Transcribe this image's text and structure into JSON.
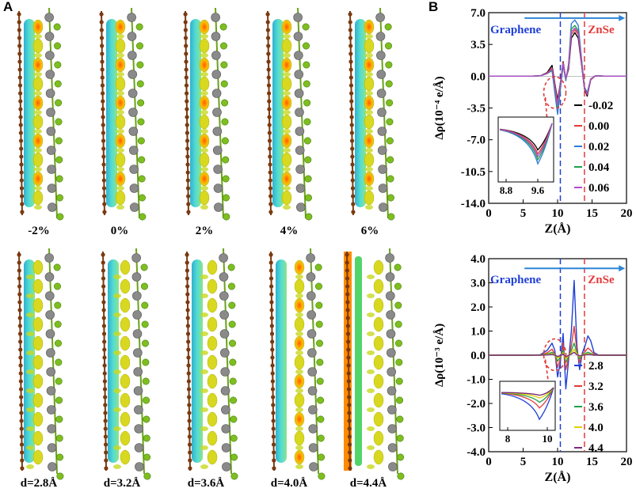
{
  "panel_a": {
    "letter": "A",
    "strain_labels": [
      "-2%",
      "0%",
      "2%",
      "4%",
      "6%"
    ],
    "distance_labels": [
      "d=2.8Å",
      "d=3.2Å",
      "d=3.6Å",
      "d=4.0Å",
      "d=4.4Å"
    ]
  },
  "panel_b": {
    "letter": "B"
  },
  "colors": {
    "carbon": "#7a3a10",
    "selenium": "#7dbf1f",
    "zinc": "#8a8a8a",
    "cyan": "#2ec4c4",
    "yellow": "#d8d820",
    "orange": "#ff9a00"
  },
  "chart_data": [
    {
      "type": "line",
      "title": "",
      "xlabel": "Z(Å)",
      "ylabel": "Δρ(10⁻⁴ e/Å)",
      "xlim": [
        0,
        20
      ],
      "ylim": [
        -14.0,
        7.0
      ],
      "xticks": [
        0,
        5,
        10,
        15,
        20
      ],
      "yticks": [
        -14.0,
        -10.5,
        -7.0,
        -3.5,
        0.0,
        3.5,
        7.0
      ],
      "ytick_labels": [
        "-14.0",
        "-10.5",
        "-7.0",
        "-3.5",
        "0.0",
        "3.5",
        "7.0"
      ],
      "annotations": {
        "left": "Graphene",
        "right": "ZnSe"
      },
      "interface_lines_x": [
        10.4,
        13.9
      ],
      "arrow_x": [
        5.2,
        19.8
      ],
      "arrow_y": 6.4,
      "series": [
        {
          "name": "-0.02",
          "color": "#000000",
          "x": [
            0,
            6,
            7.5,
            8.5,
            9.2,
            9.6,
            10.0,
            10.4,
            10.8,
            11.2,
            11.6,
            12.0,
            12.5,
            13.0,
            13.5,
            13.9,
            14.3,
            14.8,
            15.5,
            17,
            20
          ],
          "y": [
            0,
            0,
            0.05,
            0.4,
            1.2,
            -0.8,
            -2.6,
            -0.8,
            1.6,
            -0.3,
            0.8,
            4.2,
            4.8,
            4.2,
            1.2,
            -1.4,
            -2.2,
            -0.4,
            0.05,
            0,
            0
          ]
        },
        {
          "name": "0.00",
          "color": "#e23b3b",
          "x": [
            0,
            6,
            7.5,
            8.5,
            9.2,
            9.6,
            10.0,
            10.4,
            10.8,
            11.2,
            11.6,
            12.0,
            12.5,
            13.0,
            13.5,
            13.9,
            14.3,
            14.8,
            15.5,
            17,
            20
          ],
          "y": [
            0,
            0,
            0.05,
            0.35,
            0.9,
            -1.0,
            -2.9,
            -0.9,
            1.5,
            -0.3,
            1.0,
            4.6,
            5.1,
            4.6,
            1.4,
            -1.3,
            -2.0,
            -0.4,
            0.05,
            0,
            0
          ]
        },
        {
          "name": "0.02",
          "color": "#2e7bd6",
          "x": [
            0,
            6,
            7.5,
            8.5,
            9.2,
            9.6,
            10.0,
            10.4,
            10.8,
            11.2,
            11.6,
            12.0,
            12.5,
            13.0,
            13.5,
            13.9,
            14.3,
            14.8,
            15.5,
            17,
            20
          ],
          "y": [
            0,
            0,
            0.05,
            0.3,
            0.6,
            -1.8,
            -4.2,
            -1.5,
            1.2,
            -0.5,
            1.4,
            5.8,
            6.2,
            5.6,
            1.8,
            -1.2,
            -1.8,
            -0.3,
            0.05,
            0,
            0
          ]
        },
        {
          "name": "0.04",
          "color": "#1fa04a",
          "x": [
            0,
            6,
            7.5,
            8.5,
            9.2,
            9.6,
            10.0,
            10.4,
            10.8,
            11.2,
            11.6,
            12.0,
            12.5,
            13.0,
            13.5,
            13.9,
            14.3,
            14.8,
            15.5,
            17,
            20
          ],
          "y": [
            0,
            0,
            0.05,
            0.3,
            0.7,
            -1.4,
            -3.5,
            -1.2,
            1.3,
            -0.4,
            1.2,
            5.2,
            5.6,
            5.0,
            1.6,
            -1.2,
            -1.9,
            -0.3,
            0.05,
            0,
            0
          ]
        },
        {
          "name": "0.06",
          "color": "#b04cc8",
          "x": [
            0,
            6,
            7.5,
            8.5,
            9.2,
            9.6,
            10.0,
            10.4,
            10.8,
            11.2,
            11.6,
            12.0,
            12.5,
            13.0,
            13.5,
            13.9,
            14.3,
            14.8,
            15.5,
            17,
            20
          ],
          "y": [
            0,
            0,
            0.05,
            0.3,
            0.8,
            -1.2,
            -3.2,
            -1.0,
            1.4,
            -0.3,
            1.1,
            4.9,
            5.3,
            4.8,
            1.5,
            -1.3,
            -2.0,
            -0.3,
            0.05,
            0,
            0
          ]
        }
      ],
      "inset": {
        "xticks": [
          8.8,
          9.6
        ],
        "xlim": [
          8.6,
          10.0
        ],
        "series_min_x": 9.6,
        "series_min_y": [
          -0.55,
          -0.65,
          -0.9,
          -0.8,
          -0.72
        ]
      }
    },
    {
      "type": "line",
      "title": "",
      "xlabel": "Z(Å)",
      "ylabel": "Δρ(10⁻³ e/Å)",
      "xlim": [
        0,
        20
      ],
      "ylim": [
        -4.0,
        4.0
      ],
      "xticks": [
        0,
        5,
        10,
        15,
        20
      ],
      "yticks": [
        -4.0,
        -3.0,
        -2.0,
        -1.0,
        0.0,
        1.0,
        2.0,
        3.0,
        4.0
      ],
      "ytick_labels": [
        "-4.0",
        "-3.0",
        "-2.0",
        "-1.0",
        "0.0",
        "1.0",
        "2.0",
        "3.0",
        "4.0"
      ],
      "annotations": {
        "left": "Graphene",
        "right": "ZnSe"
      },
      "interface_lines_x": [
        10.4,
        13.9
      ],
      "arrow_x": [
        5.2,
        19.8
      ],
      "arrow_y": 3.6,
      "series": [
        {
          "name": "2.8",
          "color": "#1f3fd6",
          "x": [
            0,
            6,
            7.5,
            8.5,
            9.2,
            9.6,
            10.0,
            10.4,
            10.8,
            11.2,
            11.6,
            12.0,
            12.4,
            12.8,
            13.2,
            13.6,
            14.0,
            14.4,
            14.8,
            15.3,
            16,
            17,
            20
          ],
          "y": [
            0,
            0,
            0.02,
            0.2,
            0.5,
            0.2,
            -0.9,
            -0.3,
            0.9,
            -1.4,
            -0.2,
            1.0,
            3.1,
            0.4,
            -0.6,
            0.1,
            0.4,
            0.8,
            0.6,
            0.1,
            0,
            0,
            0
          ]
        },
        {
          "name": "3.2",
          "color": "#e23b3b",
          "x": [
            0,
            6,
            7.5,
            8.5,
            9.2,
            9.6,
            10.0,
            10.4,
            10.8,
            11.2,
            11.6,
            12.0,
            12.4,
            12.8,
            13.2,
            13.6,
            14.0,
            14.4,
            14.8,
            15.3,
            16,
            17,
            20
          ],
          "y": [
            0,
            0,
            0.01,
            0.1,
            0.25,
            0.05,
            -0.5,
            -0.15,
            0.4,
            -0.6,
            -0.1,
            0.4,
            1.2,
            0.2,
            -0.3,
            0.05,
            0.15,
            0.3,
            0.2,
            0.05,
            0,
            0,
            0
          ]
        },
        {
          "name": "3.6",
          "color": "#1fa04a",
          "x": [
            0,
            6,
            7.5,
            8.5,
            9.2,
            9.6,
            10.0,
            10.4,
            10.8,
            11.2,
            11.6,
            12.0,
            12.4,
            12.8,
            13.2,
            13.6,
            14.0,
            14.4,
            14.8,
            15.3,
            16,
            17,
            20
          ],
          "y": [
            0,
            0,
            0.01,
            0.05,
            0.12,
            0.02,
            -0.25,
            -0.08,
            0.2,
            -0.3,
            -0.05,
            0.2,
            0.5,
            0.1,
            -0.15,
            0.02,
            0.07,
            0.12,
            0.08,
            0.02,
            0,
            0,
            0
          ]
        },
        {
          "name": "4.0",
          "color": "#e0d000",
          "x": [
            0,
            6,
            7.5,
            8.5,
            9.2,
            9.6,
            10.0,
            10.4,
            10.8,
            11.2,
            11.6,
            12.0,
            12.4,
            12.8,
            13.2,
            13.6,
            14.0,
            14.4,
            14.8,
            15.3,
            16,
            17,
            20
          ],
          "y": [
            0,
            0,
            0,
            0.03,
            0.06,
            0.01,
            -0.12,
            -0.04,
            0.1,
            -0.15,
            -0.02,
            0.1,
            0.25,
            0.05,
            -0.07,
            0.01,
            0.03,
            0.06,
            0.04,
            0.01,
            0,
            0,
            0
          ]
        },
        {
          "name": "4.4",
          "color": "#7a2a7a",
          "x": [
            0,
            6,
            7.5,
            8.5,
            9.2,
            9.6,
            10.0,
            10.4,
            10.8,
            11.2,
            11.6,
            12.0,
            12.4,
            12.8,
            13.2,
            13.6,
            14.0,
            14.4,
            14.8,
            15.3,
            16,
            17,
            20
          ],
          "y": [
            0,
            0,
            0,
            0.01,
            0.03,
            0.0,
            -0.06,
            -0.02,
            0.05,
            -0.07,
            -0.01,
            0.05,
            0.12,
            0.02,
            -0.03,
            0.0,
            0.01,
            0.03,
            0.02,
            0,
            0,
            0,
            0
          ]
        }
      ],
      "inset": {
        "xticks": [
          8,
          10
        ],
        "xlim": [
          7.6,
          10.4
        ],
        "series_min_x": 9.6,
        "series_min_y": [
          -0.95,
          -0.55,
          -0.35,
          -0.2,
          -0.1
        ]
      }
    }
  ]
}
